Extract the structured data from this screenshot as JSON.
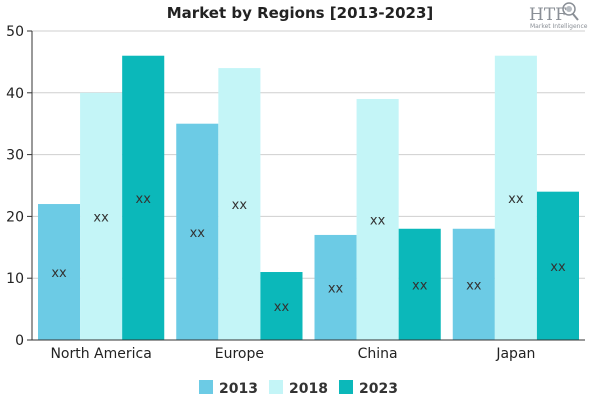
{
  "chart_data": {
    "type": "bar",
    "title": "Market by Regions [2013-2023]",
    "xlabel": "",
    "ylabel": "",
    "ylim": [
      0,
      50
    ],
    "yticks": [
      0,
      10,
      20,
      30,
      40,
      50
    ],
    "grid": true,
    "legend_position": "bottom",
    "categories": [
      "North America",
      "Europe",
      "China",
      "Japan"
    ],
    "series": [
      {
        "name": "2013",
        "color": "#6ccbe5",
        "values": [
          22,
          35,
          17,
          18
        ],
        "labels": [
          "xx",
          "xx",
          "xx",
          "xx"
        ]
      },
      {
        "name": "2018",
        "color": "#c4f5f7",
        "values": [
          40,
          44,
          39,
          46
        ],
        "labels": [
          "xx",
          "xx",
          "xx",
          "xx"
        ]
      },
      {
        "name": "2023",
        "color": "#0bb8ba",
        "values": [
          46,
          11,
          18,
          24
        ],
        "labels": [
          "xx",
          "xx",
          "xx",
          "xx"
        ]
      }
    ]
  },
  "logo": {
    "text": "HTF",
    "subtext": "Market Intelligence",
    "icon": "magnifier-globe-icon"
  }
}
